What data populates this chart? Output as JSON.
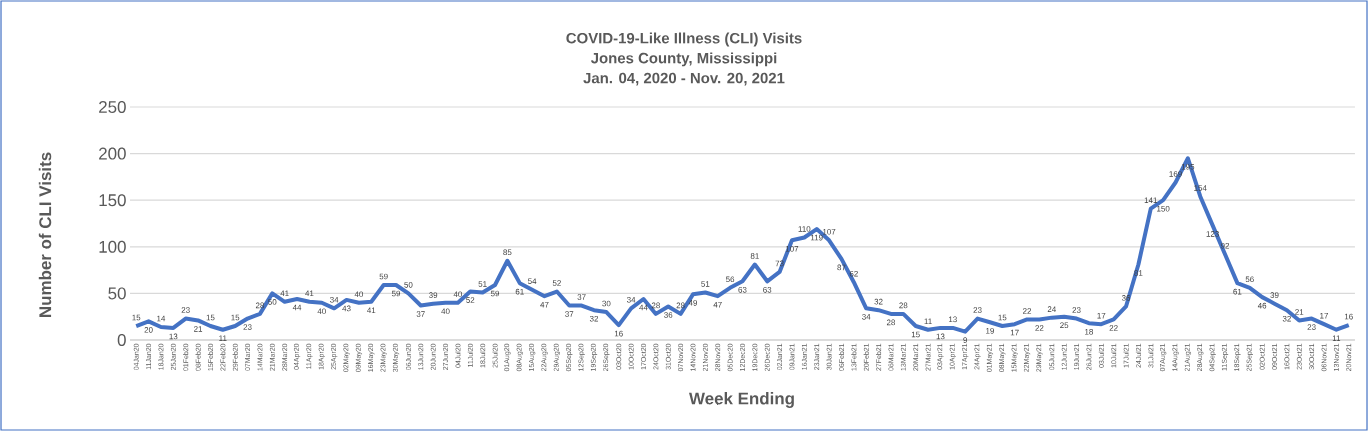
{
  "chart_data": {
    "type": "line",
    "title": "COVID-19-Like Illness (CLI) Visits\nJones County, Mississippi\nJan. 04, 2020 - Nov. 20, 2021",
    "xlabel": "Week Ending",
    "ylabel": "Number of CLI Visits",
    "categories": [
      "04Jan20",
      "11Jan20",
      "18Jan20",
      "25Jan20",
      "01Feb20",
      "08Feb20",
      "15Feb20",
      "22Feb20",
      "29Feb20",
      "07Mar20",
      "14Mar20",
      "21Mar20",
      "28Mar20",
      "04Apr20",
      "11Apr20",
      "18Apr20",
      "25Apr20",
      "02May20",
      "09May20",
      "16May20",
      "23May20",
      "30May20",
      "06Jun20",
      "13Jun20",
      "20Jun20",
      "27Jun20",
      "04Jul20",
      "11Jul20",
      "18Jul20",
      "25Jul20",
      "01Aug20",
      "08Aug20",
      "15Aug20",
      "22Aug20",
      "29Aug20",
      "05Sep20",
      "12Sep20",
      "19Sep20",
      "26Sep20",
      "03Oct20",
      "10Oct20",
      "17Oct20",
      "24Oct20",
      "31Oct20",
      "07Nov20",
      "14Nov20",
      "21Nov20",
      "28Nov20",
      "05Dec20",
      "12Dec20",
      "19Dec20",
      "26Dec20",
      "02Jan21",
      "09Jan21",
      "16Jan21",
      "23Jan21",
      "30Jan21",
      "06Feb21",
      "13Feb21",
      "20Feb21",
      "27Feb21",
      "06Mar21",
      "13Mar21",
      "20Mar21",
      "27Mar21",
      "03Apr21",
      "10Apr21",
      "17Apr21",
      "24Apr21",
      "01May21",
      "08May21",
      "15May21",
      "22May21",
      "29May21",
      "05Jun21",
      "12Jun21",
      "19Jun21",
      "26Jun21",
      "03Jul21",
      "10Jul21",
      "17Jul21",
      "24Jul21",
      "31Jul21",
      "07Aug21",
      "14Aug21",
      "21Aug21",
      "28Aug21",
      "04Sep21",
      "11Sep21",
      "18Sep21",
      "25Sep21",
      "02Oct21",
      "09Oct21",
      "16Oct21",
      "23Oct21",
      "30Oct21",
      "06Nov21",
      "13Nov21",
      "20Nov21"
    ],
    "values": [
      15,
      20,
      14,
      13,
      23,
      21,
      15,
      11,
      15,
      23,
      28,
      50,
      41,
      44,
      41,
      40,
      34,
      43,
      40,
      41,
      59,
      59,
      50,
      37,
      39,
      40,
      40,
      52,
      51,
      59,
      85,
      61,
      54,
      47,
      52,
      37,
      37,
      32,
      30,
      16,
      34,
      44,
      28,
      36,
      28,
      49,
      51,
      47,
      56,
      63,
      81,
      63,
      73,
      107,
      110,
      119,
      107,
      87,
      62,
      34,
      32,
      28,
      28,
      15,
      11,
      13,
      13,
      9,
      23,
      19,
      15,
      17,
      22,
      22,
      24,
      25,
      23,
      18,
      17,
      22,
      36,
      81,
      141,
      150,
      169,
      195,
      154,
      123,
      92,
      61,
      56,
      46,
      39,
      32,
      21,
      23,
      17,
      11,
      16
    ],
    "color": "#4472c4",
    "ylim": [
      0,
      250
    ],
    "yticks": [
      0,
      50,
      100,
      150,
      200,
      250
    ],
    "grid": "y",
    "data_labels": true,
    "marker": "none",
    "line_style": "solid"
  }
}
